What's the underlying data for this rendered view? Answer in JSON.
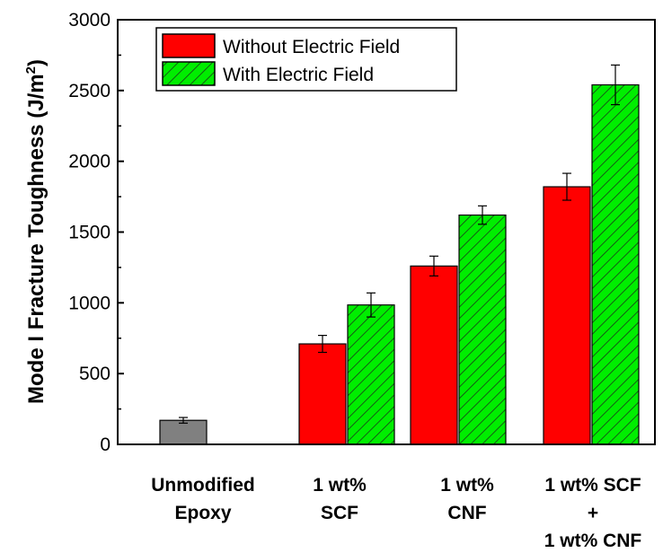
{
  "chart_data": {
    "type": "bar",
    "ylabel": "Mode I Fracture Toughness (J/m",
    "ylabel_superscript": "2",
    "ylabel_close": ")",
    "ylim": [
      0,
      3000
    ],
    "yticks": [
      0,
      500,
      1000,
      1500,
      2000,
      2500,
      3000
    ],
    "ytick_labels": [
      "0",
      "500",
      "1000",
      "1500",
      "2000",
      "2500",
      "3000"
    ],
    "grid": false,
    "legend_position": "top-left",
    "categories": [
      {
        "lines": [
          "Unmodified",
          "Epoxy"
        ]
      },
      {
        "lines": [
          "1 wt%",
          "SCF"
        ]
      },
      {
        "lines": [
          "1 wt%",
          "CNF"
        ]
      },
      {
        "lines": [
          "1 wt%  SCF",
          "+",
          "1 wt%  CNF"
        ]
      }
    ],
    "baseline": {
      "value": 170,
      "error": 20,
      "color": "#808080"
    },
    "series": [
      {
        "name": "Without Electric Field",
        "color": "#ff0000",
        "hatched": false,
        "values": [
          null,
          710,
          1260,
          1820
        ],
        "errors": [
          null,
          60,
          70,
          95
        ]
      },
      {
        "name": "With Electric Field",
        "color": "#00ee00",
        "hatched": true,
        "values": [
          null,
          985,
          1620,
          2540
        ],
        "errors": [
          null,
          85,
          65,
          140
        ]
      }
    ]
  }
}
